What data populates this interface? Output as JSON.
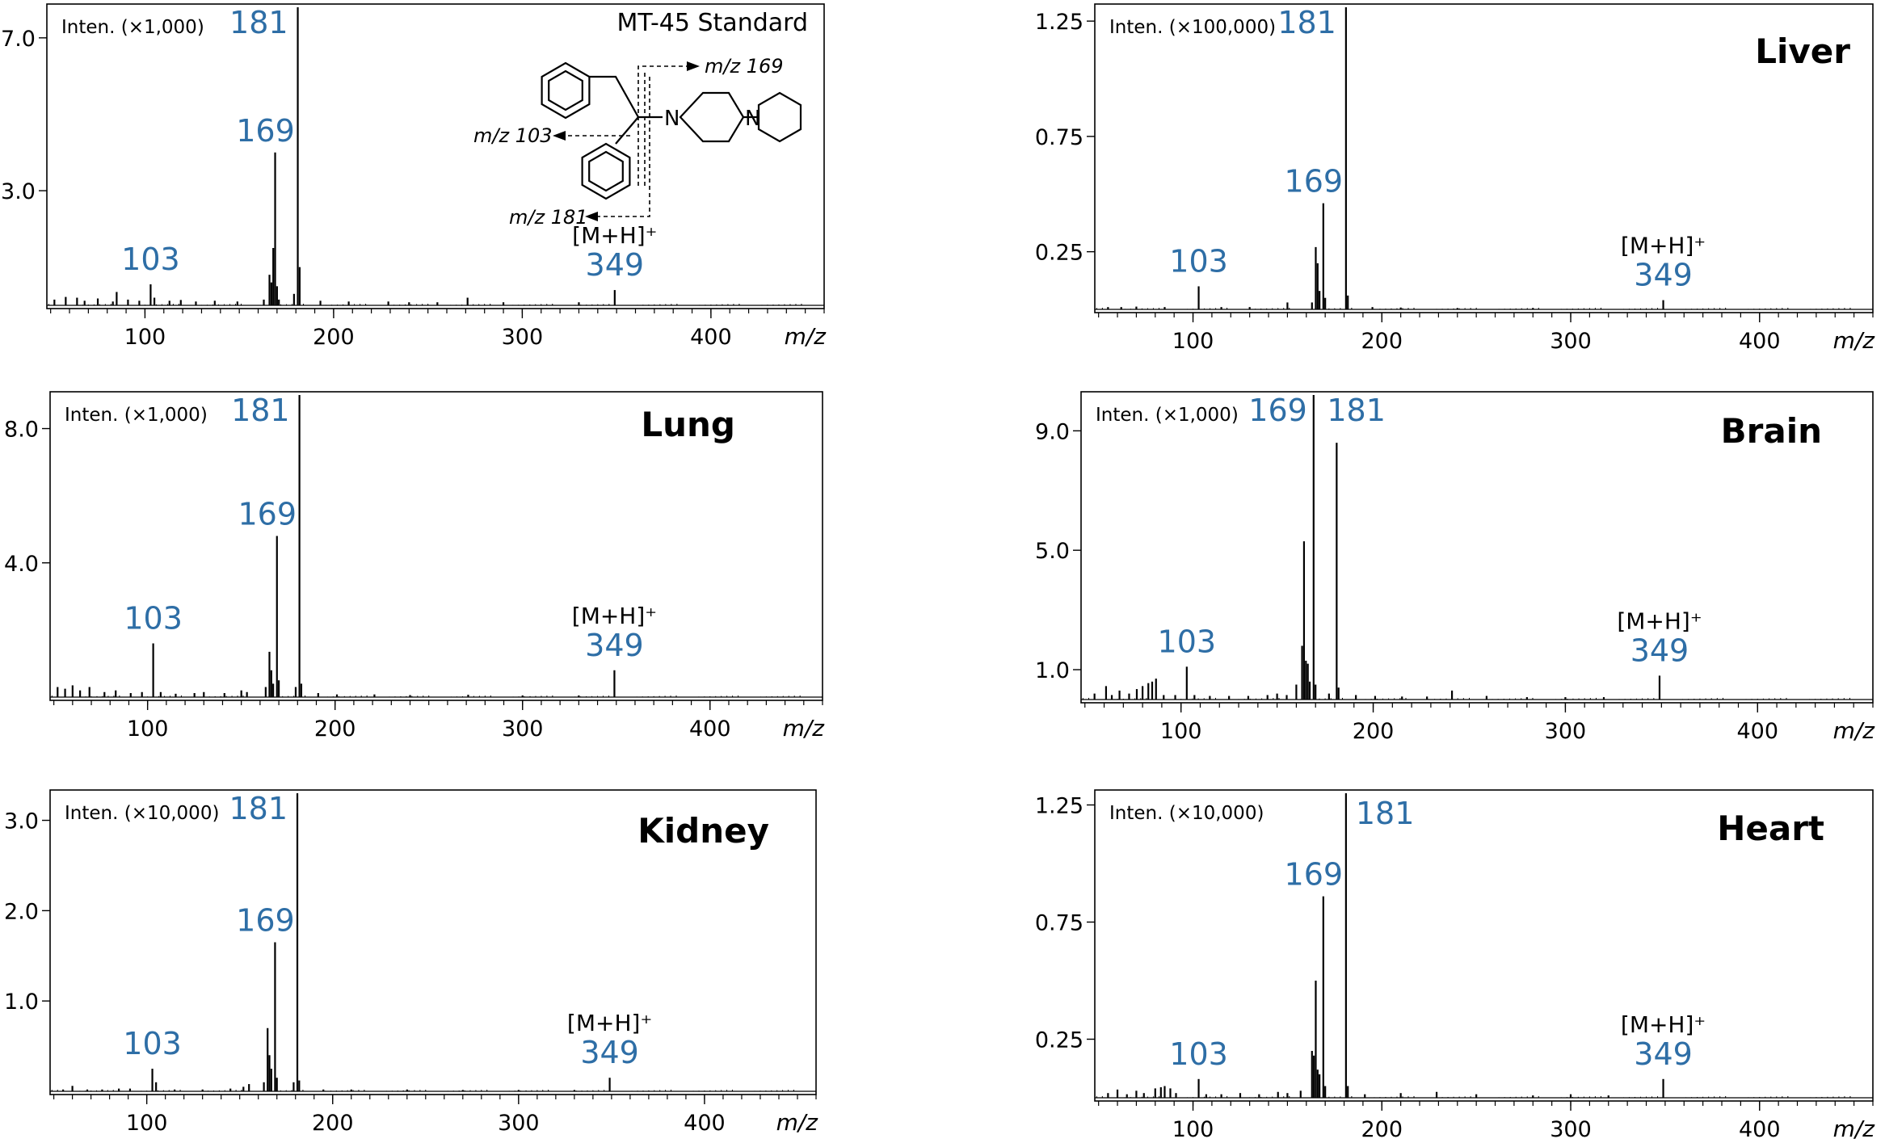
{
  "colors": {
    "peak_label": "#2e6ea6",
    "axis": "#000000",
    "trace": "#000000"
  },
  "chart_data": [
    {
      "type": "line",
      "title": "MT-45 Standard",
      "intensity_label": "Inten. (×1,000)",
      "xlabel": "m/z",
      "xlim": [
        48,
        460
      ],
      "ylim": [
        0,
        7.8
      ],
      "yticks": [
        7.0,
        3.0
      ],
      "ytick_labels": [
        "7.0",
        "3.0"
      ],
      "xticks": [
        100,
        200,
        300,
        400
      ],
      "xtick_labels": [
        "100",
        "200",
        "300",
        "400"
      ],
      "peak_labels": [
        {
          "text": "181",
          "x": 181,
          "y": 7.8
        },
        {
          "text": "169",
          "x": 169,
          "y": 4.0
        },
        {
          "text": "103",
          "x": 103,
          "y": 0.55
        },
        {
          "text": "349",
          "x": 349,
          "y": 0.4,
          "ion": "[M+H]⁺"
        }
      ],
      "structure": {
        "labels": [
          "m/z 169",
          "m/z 103",
          "m/z 181"
        ],
        "atoms": [
          "N",
          "N"
        ]
      },
      "peaks": [
        [
          52,
          0.15
        ],
        [
          58,
          0.22
        ],
        [
          64,
          0.2
        ],
        [
          68,
          0.12
        ],
        [
          75,
          0.18
        ],
        [
          83,
          0.1
        ],
        [
          85,
          0.35
        ],
        [
          91,
          0.15
        ],
        [
          97,
          0.12
        ],
        [
          103,
          0.55
        ],
        [
          105,
          0.2
        ],
        [
          113,
          0.12
        ],
        [
          119,
          0.14
        ],
        [
          127,
          0.1
        ],
        [
          137,
          0.12
        ],
        [
          149,
          0.1
        ],
        [
          163,
          0.15
        ],
        [
          166,
          0.8
        ],
        [
          167,
          0.6
        ],
        [
          168,
          1.5
        ],
        [
          169,
          4.0
        ],
        [
          170,
          0.5
        ],
        [
          171,
          0.15
        ],
        [
          179,
          0.3
        ],
        [
          181,
          7.8
        ],
        [
          182,
          1.0
        ],
        [
          193,
          0.12
        ],
        [
          208,
          0.1
        ],
        [
          229,
          0.1
        ],
        [
          240,
          0.08
        ],
        [
          255,
          0.08
        ],
        [
          271,
          0.2
        ],
        [
          290,
          0.08
        ],
        [
          330,
          0.08
        ],
        [
          349,
          0.4
        ]
      ]
    },
    {
      "type": "line",
      "title": "Liver",
      "intensity_label": "Inten. (×100,000)",
      "xlabel": "m/z",
      "xlim": [
        48,
        460
      ],
      "ylim": [
        0,
        1.31
      ],
      "yticks": [
        1.25,
        0.75,
        0.25
      ],
      "ytick_labels": [
        "1.25",
        "0.75",
        "0.25"
      ],
      "xticks": [
        100,
        200,
        300,
        400
      ],
      "xtick_labels": [
        "100",
        "200",
        "300",
        "400"
      ],
      "peak_labels": [
        {
          "text": "181",
          "x": 181,
          "y": 1.31
        },
        {
          "text": "169",
          "x": 169,
          "y": 0.46
        },
        {
          "text": "103",
          "x": 103,
          "y": 0.1
        },
        {
          "text": "349",
          "x": 349,
          "y": 0.04,
          "ion": "[M+H]⁺"
        }
      ],
      "peaks": [
        [
          55,
          0.01
        ],
        [
          62,
          0.01
        ],
        [
          70,
          0.012
        ],
        [
          85,
          0.01
        ],
        [
          103,
          0.1
        ],
        [
          115,
          0.01
        ],
        [
          130,
          0.01
        ],
        [
          150,
          0.03
        ],
        [
          163,
          0.03
        ],
        [
          165,
          0.27
        ],
        [
          166,
          0.2
        ],
        [
          167,
          0.08
        ],
        [
          169,
          0.46
        ],
        [
          170,
          0.05
        ],
        [
          181,
          1.31
        ],
        [
          182,
          0.06
        ],
        [
          195,
          0.01
        ],
        [
          210,
          0.008
        ],
        [
          240,
          0.006
        ],
        [
          280,
          0.006
        ],
        [
          349,
          0.04
        ]
      ]
    },
    {
      "type": "line",
      "title": "Lung",
      "intensity_label": "Inten. (×1,000)",
      "xlabel": "m/z",
      "xlim": [
        48,
        460
      ],
      "ylim": [
        0,
        9.0
      ],
      "yticks": [
        8.0,
        4.0
      ],
      "ytick_labels": [
        "8.0",
        "4.0"
      ],
      "xticks": [
        100,
        200,
        300,
        400
      ],
      "xtick_labels": [
        "100",
        "200",
        "300",
        "400"
      ],
      "peak_labels": [
        {
          "text": "181",
          "x": 181,
          "y": 9.0
        },
        {
          "text": "169",
          "x": 169,
          "y": 4.8
        },
        {
          "text": "103",
          "x": 103,
          "y": 1.6
        },
        {
          "text": "349",
          "x": 349,
          "y": 0.8,
          "ion": "[M+H]⁺"
        }
      ],
      "peaks": [
        [
          52,
          0.3
        ],
        [
          56,
          0.25
        ],
        [
          60,
          0.35
        ],
        [
          64,
          0.2
        ],
        [
          69,
          0.3
        ],
        [
          77,
          0.15
        ],
        [
          83,
          0.2
        ],
        [
          91,
          0.12
        ],
        [
          97,
          0.15
        ],
        [
          103,
          1.6
        ],
        [
          107,
          0.15
        ],
        [
          115,
          0.1
        ],
        [
          125,
          0.12
        ],
        [
          130,
          0.15
        ],
        [
          141,
          0.12
        ],
        [
          150,
          0.2
        ],
        [
          153,
          0.15
        ],
        [
          163,
          0.3
        ],
        [
          165,
          1.35
        ],
        [
          166,
          0.8
        ],
        [
          167,
          0.4
        ],
        [
          169,
          4.8
        ],
        [
          170,
          0.5
        ],
        [
          179,
          0.3
        ],
        [
          181,
          9.0
        ],
        [
          182,
          0.4
        ],
        [
          191,
          0.12
        ],
        [
          201,
          0.08
        ],
        [
          221,
          0.08
        ],
        [
          240,
          0.06
        ],
        [
          271,
          0.07
        ],
        [
          300,
          0.05
        ],
        [
          330,
          0.05
        ],
        [
          349,
          0.8
        ]
      ]
    },
    {
      "type": "line",
      "title": "Brain",
      "intensity_label": "Inten. (×1,000)",
      "xlabel": "m/z",
      "xlim": [
        48,
        460
      ],
      "ylim": [
        0,
        10.2
      ],
      "yticks": [
        9.0,
        5.0,
        1.0
      ],
      "ytick_labels": [
        "9.0",
        "5.0",
        "1.0"
      ],
      "xticks": [
        100,
        200,
        300,
        400
      ],
      "xtick_labels": [
        "100",
        "200",
        "300",
        "400"
      ],
      "peak_labels": [
        {
          "text": "169",
          "x": 169,
          "y": 10.2
        },
        {
          "text": "181",
          "x": 181,
          "y": 8.6
        },
        {
          "text": "103",
          "x": 103,
          "y": 1.1
        },
        {
          "text": "349",
          "x": 349,
          "y": 0.8,
          "ion": "[M+H]⁺"
        }
      ],
      "peaks": [
        [
          55,
          0.2
        ],
        [
          61,
          0.45
        ],
        [
          64,
          0.15
        ],
        [
          68,
          0.3
        ],
        [
          73,
          0.2
        ],
        [
          77,
          0.35
        ],
        [
          80,
          0.45
        ],
        [
          83,
          0.55
        ],
        [
          85,
          0.6
        ],
        [
          87,
          0.7
        ],
        [
          91,
          0.15
        ],
        [
          97,
          0.15
        ],
        [
          103,
          1.1
        ],
        [
          107,
          0.15
        ],
        [
          115,
          0.12
        ],
        [
          125,
          0.12
        ],
        [
          135,
          0.12
        ],
        [
          145,
          0.15
        ],
        [
          150,
          0.2
        ],
        [
          155,
          0.15
        ],
        [
          160,
          0.5
        ],
        [
          163,
          1.8
        ],
        [
          164,
          5.3
        ],
        [
          165,
          1.3
        ],
        [
          166,
          1.2
        ],
        [
          167,
          0.6
        ],
        [
          169,
          10.2
        ],
        [
          170,
          0.5
        ],
        [
          177,
          0.2
        ],
        [
          181,
          8.6
        ],
        [
          182,
          0.4
        ],
        [
          191,
          0.15
        ],
        [
          201,
          0.12
        ],
        [
          215,
          0.1
        ],
        [
          228,
          0.1
        ],
        [
          241,
          0.3
        ],
        [
          259,
          0.12
        ],
        [
          280,
          0.08
        ],
        [
          300,
          0.08
        ],
        [
          320,
          0.08
        ],
        [
          349,
          0.8
        ]
      ]
    },
    {
      "type": "line",
      "title": "Kidney",
      "intensity_label": "Inten. (×10,000)",
      "xlabel": "m/z",
      "xlim": [
        48,
        460
      ],
      "ylim": [
        0,
        3.3
      ],
      "yticks": [
        3.0,
        2.0,
        1.0
      ],
      "ytick_labels": [
        "3.0",
        "2.0",
        "1.0"
      ],
      "xticks": [
        100,
        200,
        300,
        400
      ],
      "xtick_labels": [
        "100",
        "200",
        "300",
        "400"
      ],
      "peak_labels": [
        {
          "text": "181",
          "x": 181,
          "y": 3.3
        },
        {
          "text": "169",
          "x": 169,
          "y": 1.65
        },
        {
          "text": "103",
          "x": 103,
          "y": 0.25
        },
        {
          "text": "349",
          "x": 349,
          "y": 0.15,
          "ion": "[M+H]⁺"
        }
      ],
      "peaks": [
        [
          55,
          0.02
        ],
        [
          60,
          0.06
        ],
        [
          68,
          0.02
        ],
        [
          76,
          0.02
        ],
        [
          85,
          0.03
        ],
        [
          91,
          0.03
        ],
        [
          103,
          0.25
        ],
        [
          105,
          0.1
        ],
        [
          115,
          0.02
        ],
        [
          130,
          0.02
        ],
        [
          145,
          0.03
        ],
        [
          152,
          0.05
        ],
        [
          155,
          0.08
        ],
        [
          163,
          0.1
        ],
        [
          165,
          0.7
        ],
        [
          166,
          0.4
        ],
        [
          167,
          0.25
        ],
        [
          169,
          1.65
        ],
        [
          170,
          0.15
        ],
        [
          179,
          0.1
        ],
        [
          181,
          3.3
        ],
        [
          182,
          0.12
        ],
        [
          195,
          0.02
        ],
        [
          210,
          0.02
        ],
        [
          240,
          0.02
        ],
        [
          270,
          0.015
        ],
        [
          300,
          0.015
        ],
        [
          330,
          0.015
        ],
        [
          349,
          0.15
        ]
      ]
    },
    {
      "type": "line",
      "title": "Heart",
      "intensity_label": "Inten. (×10,000)",
      "xlabel": "m/z",
      "xlim": [
        48,
        460
      ],
      "ylim": [
        0,
        1.3
      ],
      "yticks": [
        1.25,
        0.75,
        0.25
      ],
      "ytick_labels": [
        "1.25",
        "0.75",
        "0.25"
      ],
      "xticks": [
        100,
        200,
        300,
        400
      ],
      "xtick_labels": [
        "100",
        "200",
        "300",
        "400"
      ],
      "peak_labels": [
        {
          "text": "181",
          "x": 181,
          "y": 1.3
        },
        {
          "text": "169",
          "x": 169,
          "y": 0.86
        },
        {
          "text": "103",
          "x": 103,
          "y": 0.08
        },
        {
          "text": "349",
          "x": 349,
          "y": 0.08,
          "ion": "[M+H]⁺"
        }
      ],
      "peaks": [
        [
          55,
          0.02
        ],
        [
          60,
          0.035
        ],
        [
          65,
          0.015
        ],
        [
          70,
          0.03
        ],
        [
          74,
          0.02
        ],
        [
          80,
          0.04
        ],
        [
          83,
          0.045
        ],
        [
          85,
          0.05
        ],
        [
          88,
          0.04
        ],
        [
          91,
          0.02
        ],
        [
          103,
          0.08
        ],
        [
          107,
          0.015
        ],
        [
          115,
          0.015
        ],
        [
          125,
          0.02
        ],
        [
          135,
          0.015
        ],
        [
          145,
          0.025
        ],
        [
          150,
          0.02
        ],
        [
          157,
          0.03
        ],
        [
          163,
          0.2
        ],
        [
          164,
          0.18
        ],
        [
          165,
          0.5
        ],
        [
          166,
          0.12
        ],
        [
          167,
          0.1
        ],
        [
          169,
          0.86
        ],
        [
          170,
          0.05
        ],
        [
          181,
          1.3
        ],
        [
          182,
          0.05
        ],
        [
          191,
          0.015
        ],
        [
          210,
          0.02
        ],
        [
          229,
          0.025
        ],
        [
          250,
          0.015
        ],
        [
          280,
          0.01
        ],
        [
          300,
          0.015
        ],
        [
          320,
          0.01
        ],
        [
          349,
          0.08
        ]
      ]
    }
  ]
}
